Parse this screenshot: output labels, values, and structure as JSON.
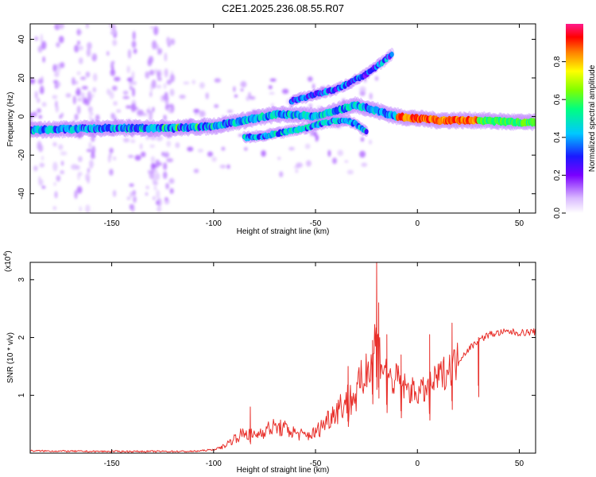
{
  "title": "C2E1.2025.236.08.55.R07",
  "colors": {
    "background": "#ffffff",
    "axis": "#000000",
    "snr_line": "#e8302b",
    "spectrogram_low": "#c9a2f5",
    "spectrogram_high": "#ff0000"
  },
  "chart_data": [
    {
      "type": "heatmap",
      "name": "spectrogram",
      "xlabel": "Height of straight line (km)",
      "ylabel": "Frequency (Hz)",
      "xlim": [
        -190,
        58
      ],
      "ylim": [
        -50,
        48
      ],
      "xticks": [
        -150,
        -100,
        -50,
        0,
        50
      ],
      "xtick_labels": [
        "-150",
        "-100",
        "-50",
        "0",
        "50"
      ],
      "yticks": [
        -40,
        -20,
        0,
        20,
        40
      ],
      "ytick_labels": [
        "-40",
        "-20",
        "0",
        "20",
        "40"
      ],
      "colorbar": {
        "label": "Normalized spectral amplitude",
        "range": [
          0,
          1
        ],
        "ticks": [
          0.0,
          0.2,
          0.4,
          0.6,
          0.8
        ],
        "tick_labels": [
          "0.0",
          "0.2",
          "0.4",
          "0.6",
          "0.8"
        ],
        "colormap": "rainbow (magenta-red high, lavender-purple low)"
      },
      "ridges": [
        {
          "name": "main band",
          "x": [
            -190,
            -150,
            -120,
            -100,
            -85,
            -70,
            -60,
            -50,
            -40,
            -30,
            -20,
            -10,
            0,
            10,
            20,
            30,
            40,
            50,
            58
          ],
          "y": [
            -7,
            -6,
            -6,
            -5,
            -2,
            1,
            1,
            0,
            3,
            6,
            3,
            0,
            -1,
            -2,
            -2,
            -2,
            -2.5,
            -3,
            -3
          ]
        },
        {
          "name": "upper spur",
          "x": [
            -62,
            -55,
            -48,
            -40,
            -32,
            -25,
            -20,
            -15,
            -12
          ],
          "y": [
            8,
            10,
            12,
            14,
            18,
            22,
            26,
            30,
            33
          ]
        },
        {
          "name": "lower branch",
          "x": [
            -85,
            -75,
            -65,
            -55,
            -45,
            -35,
            -30,
            -25
          ],
          "y": [
            -11,
            -10,
            -8,
            -6,
            -3,
            -2,
            -4,
            -8
          ]
        }
      ],
      "peak_amplitude_segment": {
        "x_range": [
          -10,
          30
        ],
        "y": -2,
        "amplitude": 0.95
      }
    },
    {
      "type": "line",
      "name": "snr",
      "xlabel": "Height of straight line (km)",
      "ylabel": "SNR (10 * v/v)",
      "multiplier_label": "(x10",
      "multiplier_exponent": "4",
      "xlim": [
        -190,
        58
      ],
      "ylim": [
        0,
        3.3
      ],
      "xticks": [
        -150,
        -100,
        -50,
        0,
        50
      ],
      "xtick_labels": [
        "-150",
        "-100",
        "-50",
        "0",
        "50"
      ],
      "yticks": [
        1,
        2,
        3
      ],
      "ytick_labels": [
        "1",
        "2",
        "3"
      ],
      "series": [
        {
          "name": "SNR",
          "x": [
            -190,
            -160,
            -130,
            -110,
            -100,
            -95,
            -90,
            -85,
            -80,
            -75,
            -70,
            -65,
            -60,
            -55,
            -50,
            -45,
            -40,
            -35,
            -30,
            -25,
            -22,
            -20,
            -18,
            -15,
            -12,
            -10,
            -5,
            0,
            5,
            10,
            15,
            20,
            25,
            30,
            35,
            40,
            45,
            50,
            58
          ],
          "values": [
            0.04,
            0.03,
            0.03,
            0.03,
            0.06,
            0.12,
            0.25,
            0.35,
            0.3,
            0.4,
            0.45,
            0.42,
            0.35,
            0.3,
            0.35,
            0.55,
            0.75,
            0.9,
            1.0,
            1.4,
            1.7,
            2.2,
            1.6,
            1.4,
            1.2,
            1.3,
            1.1,
            1.05,
            1.1,
            1.3,
            1.45,
            1.6,
            1.8,
            1.95,
            2.05,
            2.08,
            2.1,
            2.08,
            2.1
          ],
          "spikes": [
            {
              "x": -20,
              "y": 3.3
            },
            {
              "x": -19,
              "y": 2.6
            },
            {
              "x": -22,
              "y": 1.95
            },
            {
              "x": -15,
              "y": 2.05
            },
            {
              "x": -8,
              "y": 1.7
            },
            {
              "x": 6,
              "y": 2.05
            },
            {
              "x": 17,
              "y": 2.25
            },
            {
              "x": 30,
              "y": 2.0
            },
            {
              "x": -82,
              "y": 0.8
            },
            {
              "x": -34,
              "y": 1.5
            }
          ]
        }
      ]
    }
  ]
}
